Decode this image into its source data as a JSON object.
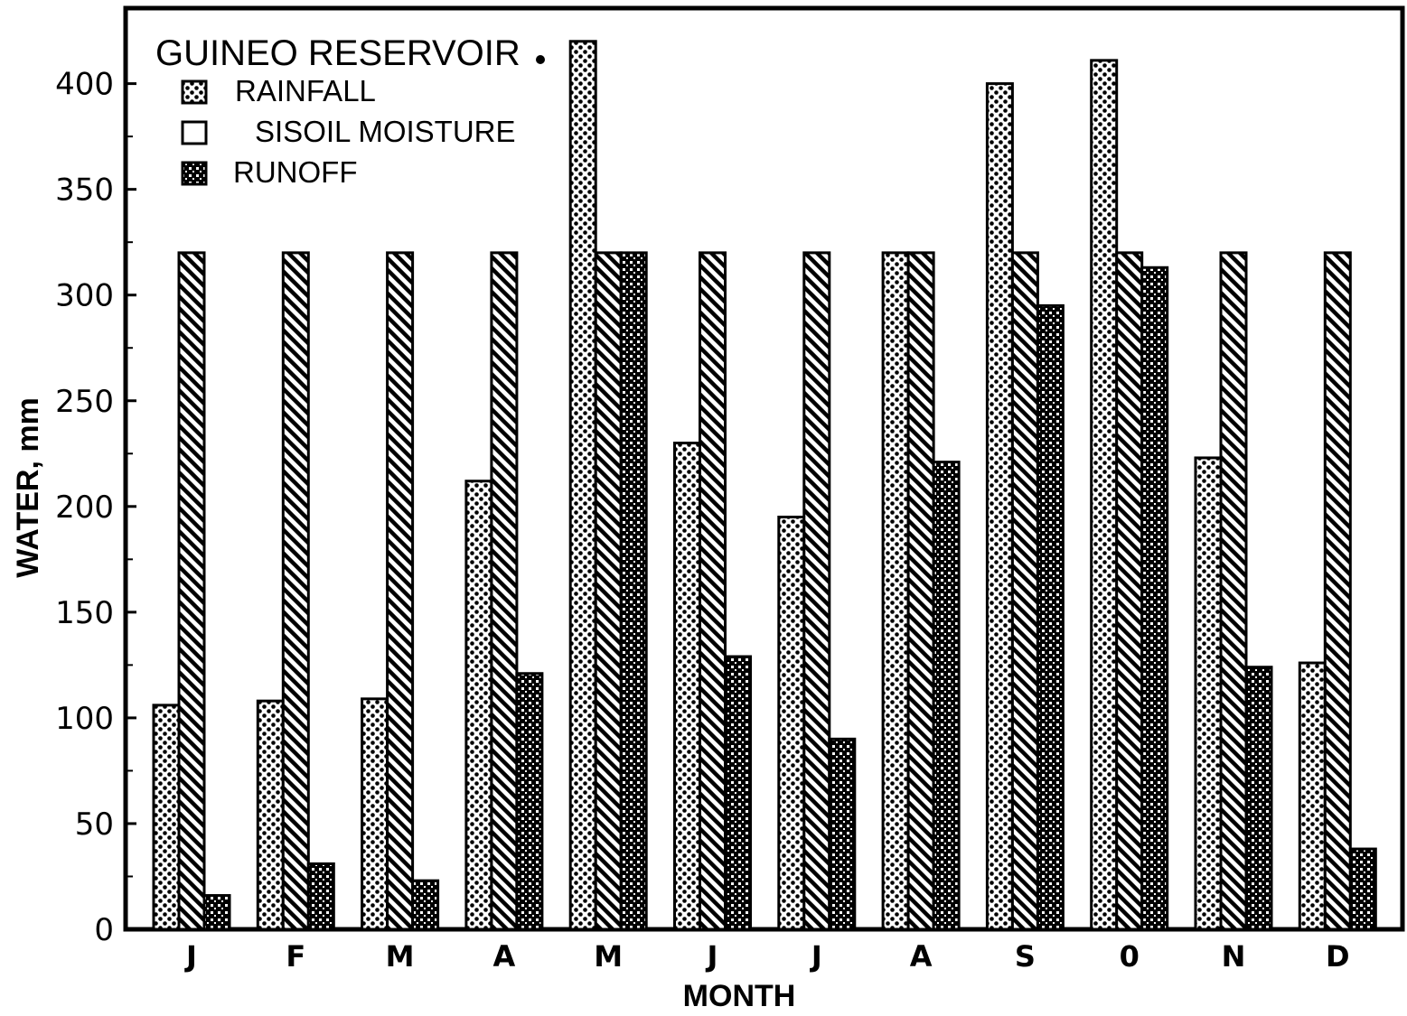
{
  "chart_data": {
    "type": "bar",
    "title": "GUINEO  RESERVOIR",
    "xlabel": "MONTH",
    "ylabel": "WATER, mm",
    "ylim": [
      0,
      430
    ],
    "yticks": [
      0,
      50,
      100,
      150,
      200,
      250,
      300,
      350,
      400
    ],
    "ytick_labels": [
      "0",
      "50",
      "100",
      "150",
      "200",
      "250",
      "300",
      "350",
      "400"
    ],
    "categories": [
      "J",
      "F",
      "M",
      "A",
      "M",
      "J",
      "J",
      "A",
      "S",
      "0",
      "N",
      "D"
    ],
    "legend_position": "top-left",
    "series": [
      {
        "name": "RAINFALL",
        "pattern": "dots",
        "values": [
          106,
          108,
          109,
          212,
          420,
          230,
          195,
          320,
          400,
          411,
          223,
          126
        ]
      },
      {
        "name": "SISOIL MOISTURE",
        "pattern": "hatch",
        "values": [
          320,
          320,
          320,
          320,
          320,
          320,
          320,
          320,
          320,
          320,
          320,
          320
        ]
      },
      {
        "name": "RUNOFF",
        "pattern": "dots-dense",
        "values": [
          16,
          31,
          23,
          121,
          320,
          129,
          90,
          221,
          295,
          313,
          124,
          38
        ]
      }
    ],
    "colors": {
      "ink": "#000000",
      "background": "#ffffff"
    }
  }
}
